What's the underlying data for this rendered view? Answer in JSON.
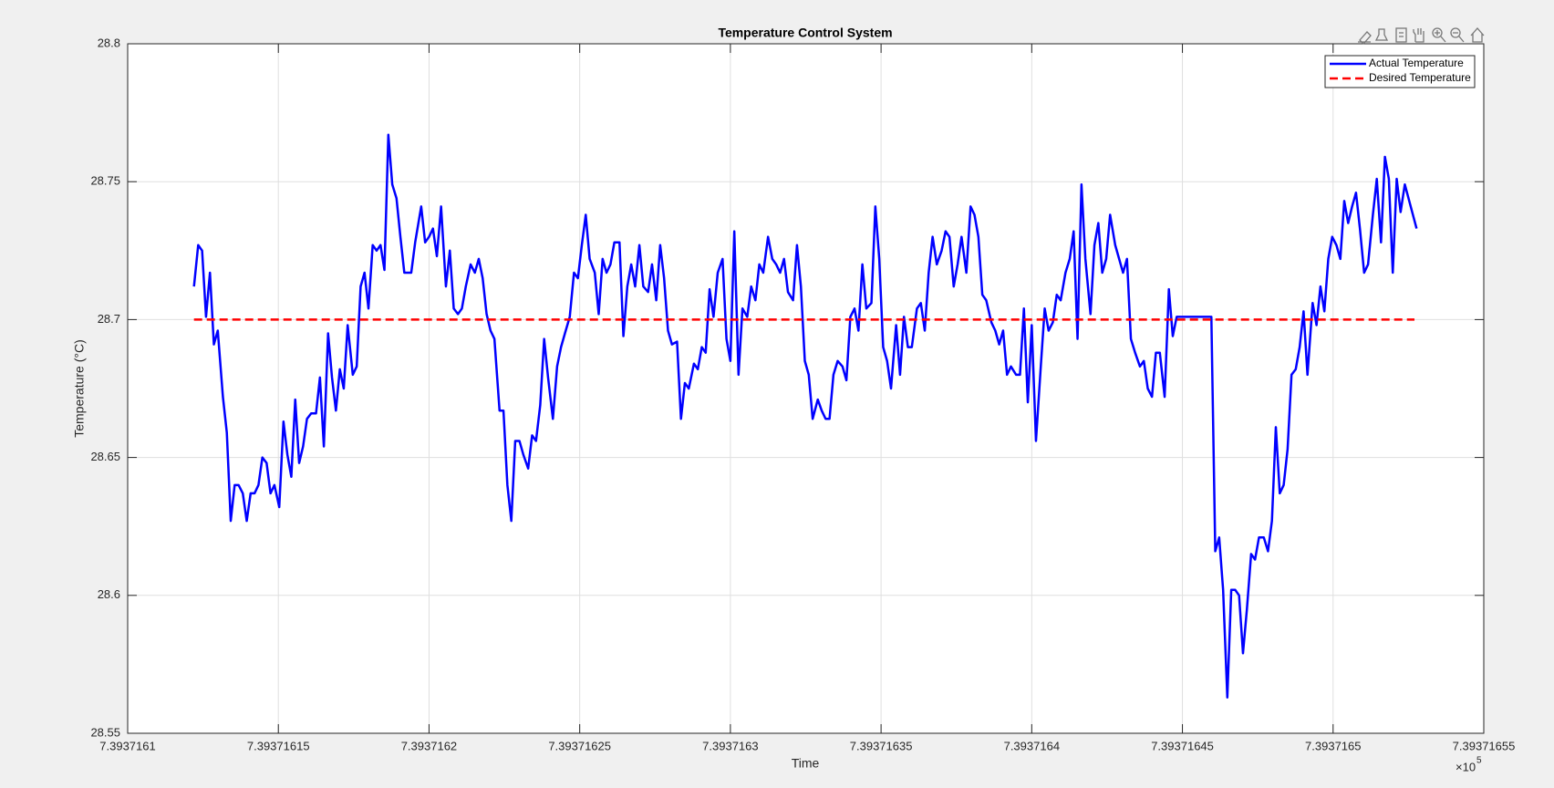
{
  "chart_data": {
    "type": "line",
    "title": "Temperature Control System",
    "x_label": "Time",
    "y_label": "Temperature (°C)",
    "x_multiplier": "×10",
    "x_multiplier_exponent": "5",
    "xlim": [
      7.3937161,
      7.39371655
    ],
    "ylim": [
      28.55,
      28.8
    ],
    "xticks": [
      7.3937161,
      7.39371615,
      7.3937162,
      7.39371625,
      7.3937163,
      7.39371635,
      7.3937164,
      7.39371645,
      7.3937165,
      7.39371655
    ],
    "yticks": [
      28.55,
      28.6,
      28.65,
      28.7,
      28.75,
      28.8
    ],
    "grid": true,
    "legend": "upper right",
    "series": [
      {
        "name": "Actual Temperature",
        "color": "#0000ff",
        "dash": "solid",
        "x": [
          7.393716122,
          7.3937161234,
          7.3937161247,
          7.393716126,
          7.3937161273,
          7.3937161286,
          7.3937161299,
          7.3937161316,
          7.3937161329,
          7.3937161342,
          7.3937161355,
          7.3937161368,
          7.3937161382,
          7.3937161395,
          7.3937161408,
          7.3937161421,
          7.3937161434,
          7.3937161447,
          7.3937161461,
          7.3937161474,
          7.3937161487,
          7.3937161503,
          7.3937161517,
          7.393716153,
          7.3937161543,
          7.3937161556,
          7.3937161569,
          7.3937161582,
          7.3937161595,
          7.3937161609,
          7.3937161625,
          7.3937161638,
          7.3937161651,
          7.3937161665,
          7.3937161678,
          7.3937161691,
          7.3937161704,
          7.3937161717,
          7.393716173,
          7.3937161747,
          7.393716176,
          7.3937161773,
          7.3937161786,
          7.3937161799,
          7.3937161813,
          7.3937161826,
          7.3937161839,
          7.3937161852,
          7.3937161865,
          7.3937161878,
          7.3937161892,
          7.3937161905,
          7.3937161918,
          7.3937161941,
          7.3937161954,
          7.3937161974,
          7.3937161987,
          7.3937162,
          7.3937162013,
          7.3937162026,
          7.393716204,
          7.3937162056,
          7.3937162069,
          7.3937162082,
          7.3937162096,
          7.3937162109,
          7.3937162122,
          7.3937162138,
          7.3937162152,
          7.3937162165,
          7.3937162178,
          7.3937162191,
          7.3937162204,
          7.3937162217,
          7.3937162234,
          7.3937162247,
          7.393716226,
          7.3937162273,
          7.3937162286,
          7.39371623,
          7.3937162313,
          7.3937162329,
          7.3937162342,
          7.3937162355,
          7.3937162369,
          7.3937162382,
          7.3937162395,
          7.3937162411,
          7.3937162425,
          7.3937162438,
          7.3937162451,
          7.3937162467,
          7.3937162481,
          7.3937162494,
          7.3937162507,
          7.393716252,
          7.3937162533,
          7.393716255,
          7.3937162563,
          7.3937162576,
          7.3937162589,
          7.3937162602,
          7.3937162615,
          7.3937162632,
          7.3937162645,
          7.3937162658,
          7.3937162671,
          7.3937162684,
          7.3937162698,
          7.3937162711,
          7.3937162727,
          7.393716274,
          7.3937162754,
          7.3937162767,
          7.393716278,
          7.3937162793,
          7.3937162806,
          7.3937162823,
          7.3937162836,
          7.3937162849,
          7.3937162862,
          7.3937162879,
          7.3937162892,
          7.3937162905,
          7.3937162918,
          7.3937162931,
          7.3937162944,
          7.3937162958,
          7.3937162974,
          7.3937162987,
          7.3937163,
          7.3937163013,
          7.3937163027,
          7.393716304,
          7.3937163056,
          7.3937163069,
          7.3937163083,
          7.3937163096,
          7.3937163109,
          7.3937163125,
          7.3937163139,
          7.3937163152,
          7.3937163165,
          7.3937163178,
          7.3937163191,
          7.3937163208,
          7.3937163221,
          7.3937163234,
          7.3937163247,
          7.393716326,
          7.3937163273,
          7.393716329,
          7.3937163303,
          7.3937163316,
          7.3937163329,
          7.3937163342,
          7.3937163356,
          7.3937163372,
          7.3937163385,
          7.3937163398,
          7.3937163412,
          7.3937163425,
          7.3937163438,
          7.3937163451,
          7.3937163468,
          7.3937163481,
          7.3937163494,
          7.3937163507,
          7.393716352,
          7.3937163533,
          7.393716355,
          7.3937163563,
          7.3937163576,
          7.3937163589,
          7.3937163602,
          7.3937163619,
          7.3937163632,
          7.3937163645,
          7.3937163658,
          7.3937163671,
          7.3937163685,
          7.3937163701,
          7.3937163714,
          7.3937163727,
          7.3937163741,
          7.3937163754,
          7.3937163767,
          7.3937163783,
          7.3937163797,
          7.393716381,
          7.3937163823,
          7.3937163836,
          7.3937163849,
          7.3937163866,
          7.3937163879,
          7.3937163892,
          7.3937163905,
          7.3937163918,
          7.3937163931,
          7.3937163948,
          7.3937163961,
          7.3937163974,
          7.3937163987,
          7.3937164,
          7.3937164014,
          7.393716403,
          7.3937164043,
          7.3937164056,
          7.393716407,
          7.3937164083,
          7.3937164096,
          7.3937164112,
          7.3937164126,
          7.3937164139,
          7.3937164152,
          7.3937164165,
          7.3937164178,
          7.3937164195,
          7.3937164208,
          7.3937164221,
          7.3937164234,
          7.3937164247,
          7.393716426,
          7.3937164277,
          7.393716429,
          7.3937164303,
          7.3937164316,
          7.3937164329,
          7.3937164343,
          7.3937164359,
          7.3937164372,
          7.3937164385,
          7.3937164399,
          7.3937164412,
          7.3937164425,
          7.3937164441,
          7.3937164455,
          7.3937164468,
          7.3937164481,
          7.3937164494,
          7.3937164596,
          7.3937164609,
          7.3937164622,
          7.3937164635,
          7.3937164649,
          7.3937164662,
          7.3937164675,
          7.3937164688,
          7.3937164701,
          7.3937164714,
          7.3937164728,
          7.3937164741,
          7.3937164754,
          7.393716477,
          7.3937164784,
          7.3937164797,
          7.393716481,
          7.3937164823,
          7.3937164836,
          7.3937164849,
          7.3937164862,
          7.3937164876,
          7.3937164889,
          7.3937164902,
          7.3937164915,
          7.3937164932,
          7.3937164945,
          7.3937164958,
          7.3937164971,
          7.3937164984,
          7.3937164997,
          7.3937165011,
          7.3937165024,
          7.3937165037,
          7.393716505,
          7.3937165063,
          7.3937165076,
          7.3937165089,
          7.3937165103,
          7.3937165116,
          7.3937165132,
          7.3937165145,
          7.3937165159,
          7.3937165172,
          7.3937165185,
          7.3937165198,
          7.3937165211,
          7.3937165224,
          7.3937165238,
          7.3937165277
        ],
        "values": [
          28.712,
          28.727,
          28.725,
          28.701,
          28.717,
          28.691,
          28.696,
          28.672,
          28.659,
          28.627,
          28.64,
          28.64,
          28.637,
          28.627,
          28.637,
          28.637,
          28.64,
          28.65,
          28.648,
          28.637,
          28.64,
          28.632,
          28.663,
          28.651,
          28.643,
          28.671,
          28.648,
          28.654,
          28.664,
          28.666,
          28.666,
          28.679,
          28.654,
          28.695,
          28.679,
          28.667,
          28.682,
          28.675,
          28.698,
          28.68,
          28.683,
          28.712,
          28.717,
          28.704,
          28.727,
          28.725,
          28.727,
          28.718,
          28.767,
          28.749,
          28.744,
          28.73,
          28.717,
          28.717,
          28.728,
          28.741,
          28.728,
          28.73,
          28.733,
          28.723,
          28.741,
          28.712,
          28.725,
          28.704,
          28.702,
          28.704,
          28.712,
          28.72,
          28.717,
          28.722,
          28.715,
          28.702,
          28.696,
          28.693,
          28.667,
          28.667,
          28.64,
          28.627,
          28.656,
          28.656,
          28.651,
          28.646,
          28.658,
          28.656,
          28.669,
          28.693,
          28.679,
          28.664,
          28.683,
          28.69,
          28.695,
          28.701,
          28.717,
          28.715,
          28.727,
          28.738,
          28.722,
          28.717,
          28.702,
          28.722,
          28.717,
          28.72,
          28.728,
          28.728,
          28.694,
          28.712,
          28.72,
          28.712,
          28.727,
          28.712,
          28.71,
          28.72,
          28.707,
          28.727,
          28.715,
          28.696,
          28.691,
          28.692,
          28.664,
          28.677,
          28.675,
          28.684,
          28.682,
          28.69,
          28.688,
          28.711,
          28.701,
          28.717,
          28.722,
          28.693,
          28.685,
          28.732,
          28.68,
          28.704,
          28.701,
          28.712,
          28.707,
          28.72,
          28.717,
          28.73,
          28.722,
          28.72,
          28.717,
          28.722,
          28.71,
          28.707,
          28.727,
          28.712,
          28.685,
          28.68,
          28.664,
          28.671,
          28.667,
          28.664,
          28.664,
          28.68,
          28.685,
          28.683,
          28.678,
          28.701,
          28.704,
          28.696,
          28.72,
          28.704,
          28.706,
          28.741,
          28.722,
          28.69,
          28.685,
          28.675,
          28.698,
          28.68,
          28.701,
          28.69,
          28.69,
          28.704,
          28.706,
          28.696,
          28.717,
          28.73,
          28.72,
          28.725,
          28.732,
          28.73,
          28.712,
          28.72,
          28.73,
          28.717,
          28.741,
          28.738,
          28.73,
          28.709,
          28.707,
          28.699,
          28.696,
          28.691,
          28.696,
          28.68,
          28.683,
          28.68,
          28.68,
          28.704,
          28.67,
          28.698,
          28.656,
          28.683,
          28.704,
          28.696,
          28.699,
          28.709,
          28.707,
          28.717,
          28.722,
          28.732,
          28.693,
          28.749,
          28.722,
          28.702,
          28.727,
          28.735,
          28.717,
          28.722,
          28.738,
          28.727,
          28.722,
          28.717,
          28.722,
          28.693,
          28.688,
          28.683,
          28.685,
          28.675,
          28.672,
          28.688,
          28.688,
          28.672,
          28.711,
          28.694,
          28.701,
          28.701,
          28.701,
          28.616,
          28.621,
          28.602,
          28.563,
          28.602,
          28.602,
          28.6,
          28.579,
          28.595,
          28.615,
          28.613,
          28.621,
          28.621,
          28.616,
          28.627,
          28.661,
          28.637,
          28.64,
          28.653,
          28.68,
          28.682,
          28.69,
          28.703,
          28.68,
          28.706,
          28.698,
          28.712,
          28.703,
          28.722,
          28.73,
          28.727,
          28.722,
          28.743,
          28.735,
          28.741,
          28.746,
          28.733,
          28.717,
          28.72,
          28.738,
          28.751,
          28.728,
          28.759,
          28.751,
          28.717,
          28.751,
          28.739,
          28.749,
          28.733
        ]
      },
      {
        "name": "Desired Temperature",
        "color": "#ff0000",
        "dash": "dashed",
        "x": [
          7.393716122,
          7.393716527
        ],
        "values": [
          28.7,
          28.7
        ]
      }
    ]
  }
}
